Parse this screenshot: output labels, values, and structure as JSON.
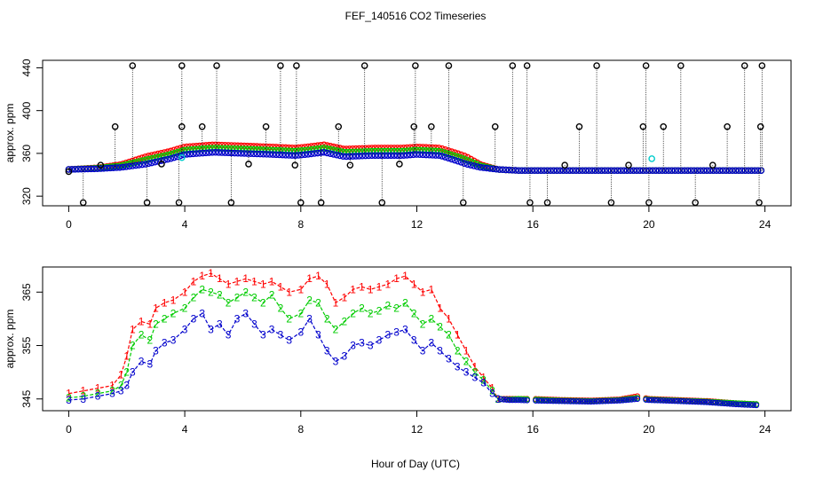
{
  "page_title": "FEF_140516  CO2 Timeseries",
  "xlabel": "Hour of Day (UTC)",
  "colors": {
    "series1": "#ff0000",
    "series2": "#00cc00",
    "series3": "#0000cc",
    "flag": "#000000",
    "cyan": "#00cccc"
  },
  "chart_data": [
    {
      "type": "scatter",
      "ylabel": "approx. ppm",
      "xlim": [
        -0.9,
        24.9
      ],
      "ylim": [
        311,
        447
      ],
      "xticks": [
        0,
        4,
        8,
        12,
        16,
        20,
        24
      ],
      "yticks": [
        320,
        360,
        400,
        440
      ],
      "markers": "open circles",
      "series_keys": [
        "1",
        "2",
        "3"
      ],
      "curve": {
        "x": [
          0,
          1,
          1.8,
          2.5,
          3,
          3.5,
          4,
          5,
          6,
          7,
          7.8,
          8.2,
          8.8,
          9.5,
          10.5,
          11.5,
          12,
          12.8,
          13.5,
          14.2,
          14.8,
          15.5,
          16,
          18,
          20,
          22,
          24
        ],
        "y": [
          345,
          346,
          348,
          352,
          355,
          358,
          362,
          364,
          363,
          362,
          361,
          362,
          364,
          360,
          361,
          361,
          362,
          361,
          355,
          348,
          345,
          344,
          344,
          344,
          344,
          344,
          344
        ],
        "series_offsets": [
          4,
          1,
          -3
        ]
      },
      "flags": {
        "x": [
          0,
          0.5,
          1.1,
          1.6,
          2.2,
          2.7,
          3.2,
          3.8,
          3.9,
          3.9,
          4.6,
          5.1,
          5.6,
          6.2,
          6.8,
          7.3,
          7.8,
          7.85,
          8,
          8.7,
          9.3,
          9.7,
          10.2,
          10.8,
          11.4,
          11.9,
          11.95,
          12.5,
          13.1,
          13.6,
          14.7,
          15.3,
          15.8,
          15.9,
          16.5,
          17.1,
          17.6,
          18.2,
          18.7,
          19.3,
          19.8,
          19.9,
          20,
          20.5,
          21.1,
          21.6,
          22.2,
          22.7,
          23.3,
          23.8,
          23.85,
          23.9
        ],
        "y": [
          343,
          314,
          349,
          385,
          442,
          314,
          350,
          314,
          385,
          442,
          385,
          442,
          314,
          350,
          385,
          442,
          349,
          442,
          314,
          314,
          385,
          349,
          442,
          314,
          350,
          385,
          442,
          385,
          442,
          314,
          385,
          442,
          442,
          314,
          314,
          349,
          385,
          442,
          314,
          349,
          385,
          442,
          314,
          385,
          442,
          314,
          349,
          385,
          442,
          314,
          385,
          442
        ]
      },
      "annotations": [
        {
          "label": "cyan",
          "x": 3.9,
          "y": 356
        },
        {
          "label": "cyan",
          "x": 20.1,
          "y": 355
        }
      ]
    },
    {
      "type": "line",
      "ylabel": "approx. ppm",
      "xlabel": "Hour of Day (UTC)",
      "xlim": [
        -0.9,
        24.9
      ],
      "ylim": [
        342.8,
        369.7
      ],
      "xticks": [
        0,
        4,
        8,
        12,
        16,
        20,
        24
      ],
      "yticks": [
        345,
        355,
        365
      ],
      "point_labels": [
        "1",
        "2",
        "3"
      ],
      "missing_hours": [
        [
          15.8,
          16.0
        ],
        [
          19.7,
          19.9
        ]
      ],
      "series": [
        {
          "name": "1",
          "x": [
            0,
            0.5,
            1,
            1.5,
            1.8,
            2,
            2.2,
            2.5,
            2.8,
            3,
            3.3,
            3.6,
            4,
            4.3,
            4.6,
            4.9,
            5.2,
            5.5,
            5.8,
            6.1,
            6.4,
            6.7,
            7,
            7.3,
            7.6,
            8,
            8.3,
            8.6,
            8.9,
            9.2,
            9.5,
            9.8,
            10.1,
            10.4,
            10.7,
            11,
            11.3,
            11.6,
            11.9,
            12.2,
            12.5,
            12.8,
            13.1,
            13.4,
            13.7,
            14,
            14.3,
            14.6,
            14.8,
            15.2,
            15.5,
            16,
            17,
            18,
            19,
            19.6,
            20,
            21,
            22,
            23,
            23.8
          ],
          "y": [
            346,
            346.5,
            347,
            347.5,
            349.5,
            353,
            358,
            359.5,
            359,
            362,
            363,
            363.5,
            365,
            367,
            368,
            368.5,
            367.5,
            366.5,
            367,
            367.5,
            367,
            366.5,
            367,
            366,
            365,
            365.5,
            367.5,
            368,
            366.5,
            363,
            364,
            365.5,
            366,
            365.5,
            366,
            366.5,
            367.5,
            368,
            366.5,
            365,
            365.5,
            362,
            360,
            357,
            354,
            351,
            349,
            347,
            345,
            345,
            345,
            345,
            344.8,
            344.7,
            344.9,
            345.5,
            345,
            344.8,
            344.6,
            344.2,
            344
          ]
        },
        {
          "name": "2",
          "x": [
            0,
            0.5,
            1,
            1.5,
            1.8,
            2,
            2.2,
            2.5,
            2.8,
            3,
            3.3,
            3.6,
            4,
            4.3,
            4.6,
            4.9,
            5.2,
            5.5,
            5.8,
            6.1,
            6.4,
            6.7,
            7,
            7.3,
            7.6,
            8,
            8.3,
            8.6,
            8.9,
            9.2,
            9.5,
            9.8,
            10.1,
            10.4,
            10.7,
            11,
            11.3,
            11.6,
            11.9,
            12.2,
            12.5,
            12.8,
            13.1,
            13.4,
            13.7,
            14,
            14.3,
            14.6,
            14.8,
            15.2,
            15.5,
            16,
            17,
            18,
            19,
            19.6,
            20,
            21,
            22,
            23,
            23.8
          ],
          "y": [
            345.2,
            345.5,
            346,
            346.5,
            347.5,
            350,
            355,
            357,
            356,
            359,
            360,
            361,
            362,
            364,
            365.5,
            365,
            364.5,
            363,
            364,
            365,
            364,
            363,
            364.5,
            362,
            360,
            361,
            363.5,
            363,
            360,
            358,
            359.5,
            361,
            362,
            361,
            361.5,
            362.5,
            362,
            363,
            361,
            359,
            360,
            358.5,
            357,
            354,
            352,
            350,
            348.5,
            346.5,
            345,
            344.9,
            345,
            344.9,
            344.7,
            344.6,
            344.8,
            345.2,
            344.9,
            344.7,
            344.5,
            344.2,
            344
          ]
        },
        {
          "name": "3",
          "x": [
            0,
            0.5,
            1,
            1.5,
            1.8,
            2,
            2.2,
            2.5,
            2.8,
            3,
            3.3,
            3.6,
            4,
            4.3,
            4.6,
            4.9,
            5.2,
            5.5,
            5.8,
            6.1,
            6.4,
            6.7,
            7,
            7.3,
            7.6,
            8,
            8.3,
            8.6,
            8.9,
            9.2,
            9.5,
            9.8,
            10.1,
            10.4,
            10.7,
            11,
            11.3,
            11.6,
            11.9,
            12.2,
            12.5,
            12.8,
            13.1,
            13.4,
            13.7,
            14,
            14.3,
            14.6,
            14.8,
            15.2,
            15.5,
            16,
            17,
            18,
            19,
            19.6,
            20,
            21,
            22,
            23,
            23.8
          ],
          "y": [
            344.8,
            345,
            345.5,
            346,
            346.5,
            347.5,
            350,
            352,
            351.5,
            354,
            355.5,
            356,
            358,
            360,
            361,
            358,
            359,
            357,
            360,
            361,
            359,
            357,
            358,
            357,
            356,
            357.5,
            360,
            357,
            354,
            352,
            353,
            355,
            355.5,
            355,
            356,
            357,
            357.5,
            358,
            356,
            354,
            355.5,
            354,
            352.5,
            351,
            350,
            349,
            348,
            346,
            345,
            344.8,
            344.8,
            344.7,
            344.6,
            344.5,
            344.7,
            345,
            344.8,
            344.6,
            344.4,
            344,
            343.8
          ]
        }
      ]
    }
  ]
}
